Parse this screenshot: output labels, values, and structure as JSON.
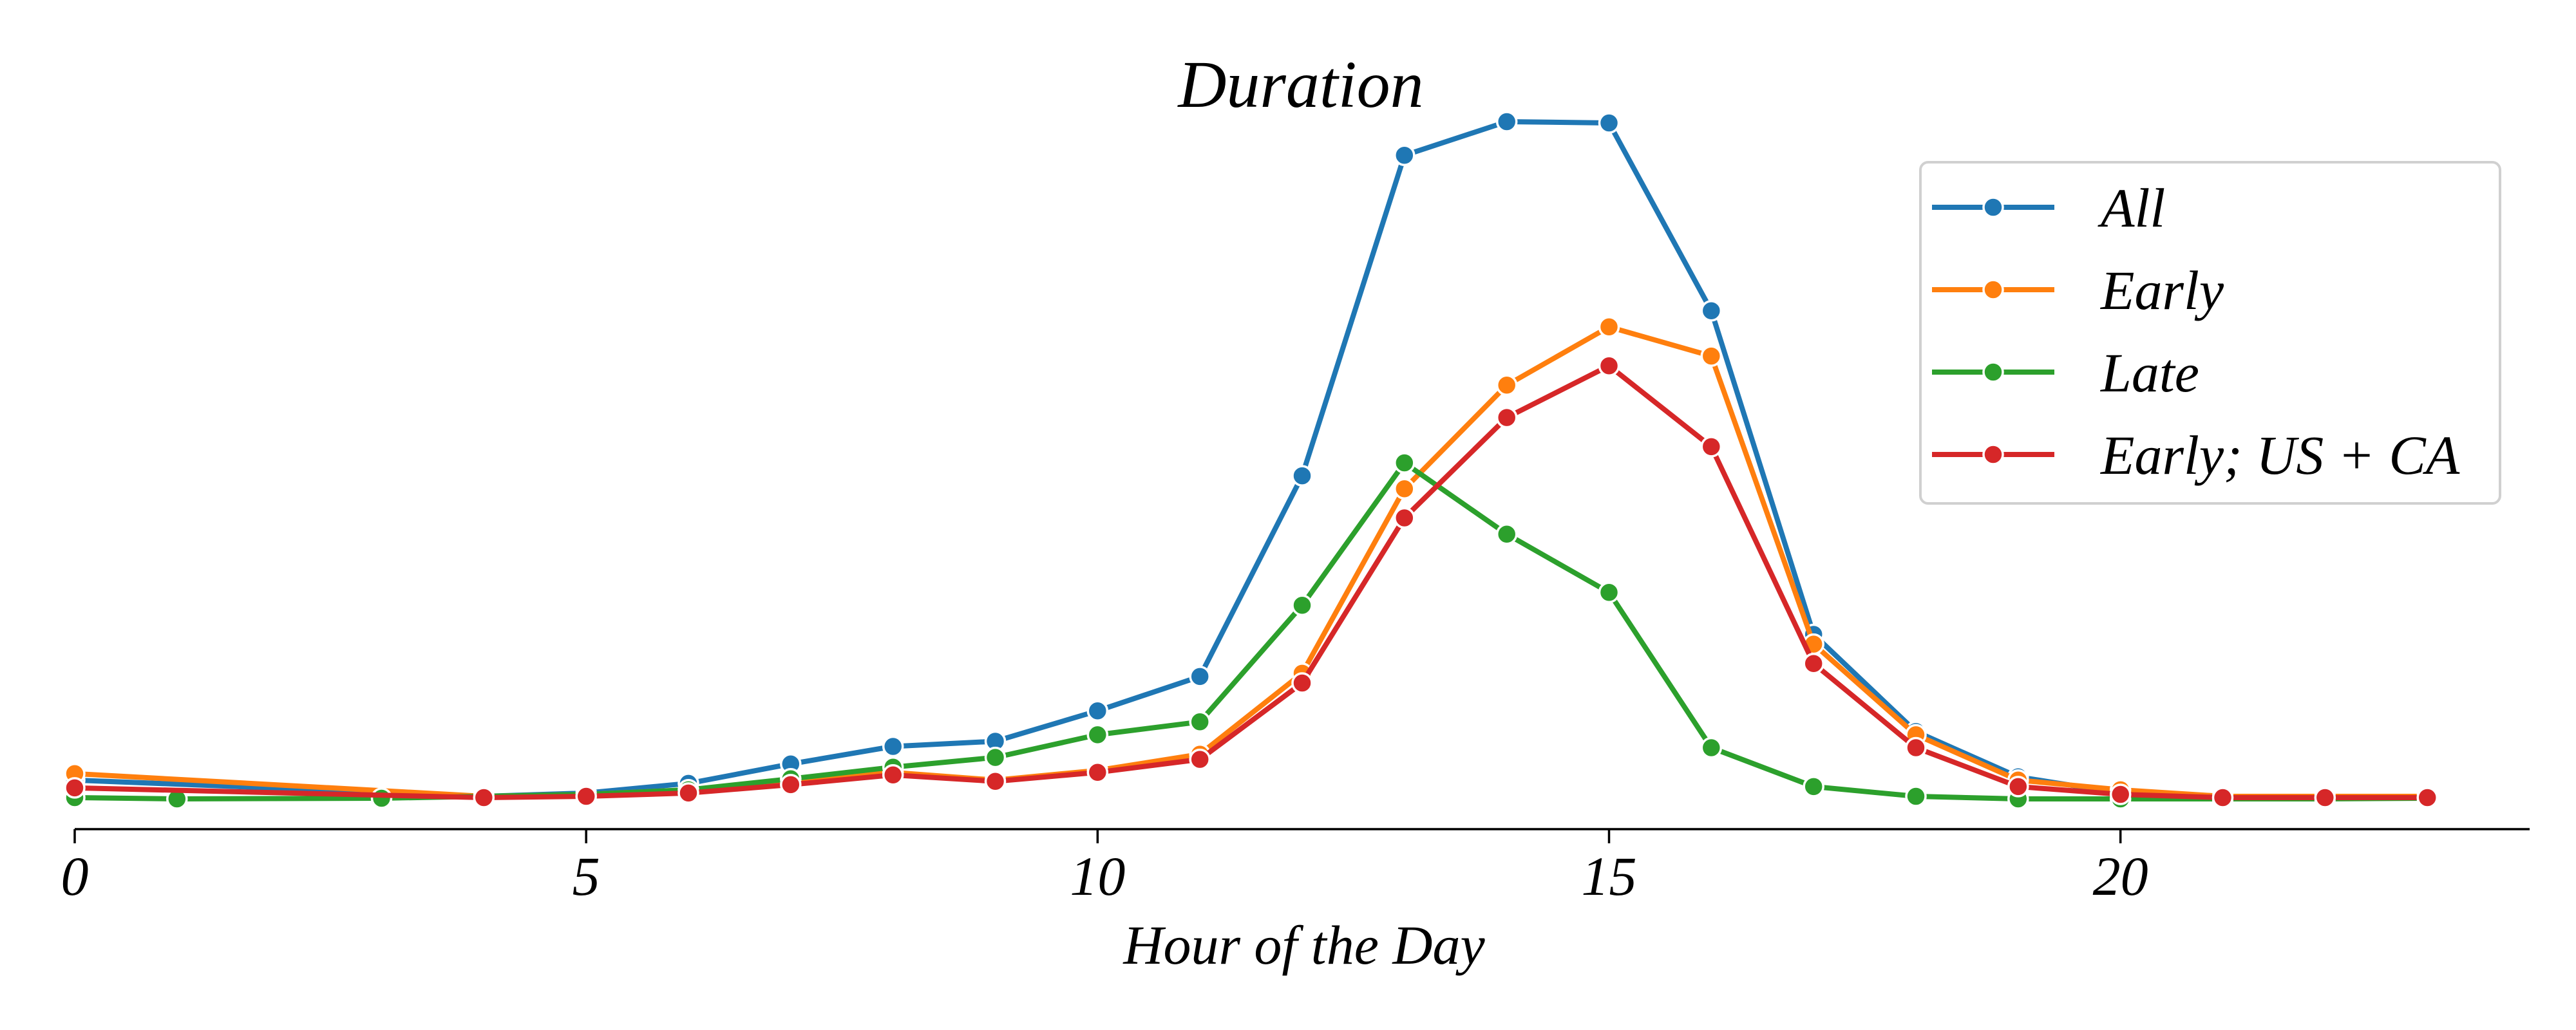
{
  "chart_data": {
    "type": "line",
    "title": "Duration",
    "xlabel": "Hour of the Day",
    "ylabel": "",
    "xlim": [
      0,
      24
    ],
    "ylim": [
      0,
      1.05
    ],
    "xticks": [
      0,
      5,
      10,
      15,
      20
    ],
    "yticks_visible": false,
    "grid": false,
    "legend_position": "top-right",
    "series": [
      {
        "name": "All",
        "color": "#1f77b4",
        "x": [
          0,
          4,
          5,
          6,
          7,
          8,
          9,
          10,
          11,
          12,
          13,
          14,
          15,
          16,
          17,
          18,
          19,
          20,
          21,
          22,
          23
        ],
        "y": [
          0.03,
          0.005,
          0.01,
          0.025,
          0.055,
          0.082,
          0.09,
          0.137,
          0.19,
          0.5,
          0.995,
          1.047,
          1.045,
          0.755,
          0.255,
          0.105,
          0.035,
          0.01,
          0.005,
          0.005,
          0.005
        ]
      },
      {
        "name": "Early",
        "color": "#ff7f0e",
        "x": [
          0,
          4,
          5,
          6,
          7,
          8,
          9,
          10,
          11,
          12,
          13,
          14,
          15,
          16,
          17,
          18,
          19,
          20,
          21,
          22,
          23
        ],
        "y": [
          0.04,
          0.005,
          0.008,
          0.015,
          0.028,
          0.042,
          0.03,
          0.045,
          0.07,
          0.195,
          0.48,
          0.64,
          0.73,
          0.685,
          0.24,
          0.1,
          0.03,
          0.015,
          0.005,
          0.005,
          0.005
        ]
      },
      {
        "name": "Late",
        "color": "#2ca02c",
        "x": [
          0,
          1,
          3,
          4,
          5,
          6,
          7,
          8,
          9,
          10,
          11,
          12,
          13,
          14,
          15,
          16,
          17,
          18,
          19,
          20,
          21,
          22,
          23
        ],
        "y": [
          0.003,
          0.001,
          0.002,
          0.005,
          0.008,
          0.015,
          0.032,
          0.05,
          0.065,
          0.1,
          0.12,
          0.3,
          0.52,
          0.41,
          0.32,
          0.08,
          0.02,
          0.005,
          0.001,
          0.001,
          0.001,
          0.001,
          0.002
        ]
      },
      {
        "name": "Early; US + CA",
        "color": "#d62728",
        "x": [
          0,
          4,
          5,
          6,
          7,
          8,
          9,
          10,
          11,
          12,
          13,
          14,
          15,
          16,
          17,
          18,
          19,
          20,
          21,
          22,
          23
        ],
        "y": [
          0.018,
          0.003,
          0.005,
          0.01,
          0.023,
          0.038,
          0.028,
          0.042,
          0.062,
          0.18,
          0.435,
          0.59,
          0.67,
          0.545,
          0.21,
          0.08,
          0.02,
          0.008,
          0.003,
          0.003,
          0.003
        ]
      }
    ]
  }
}
